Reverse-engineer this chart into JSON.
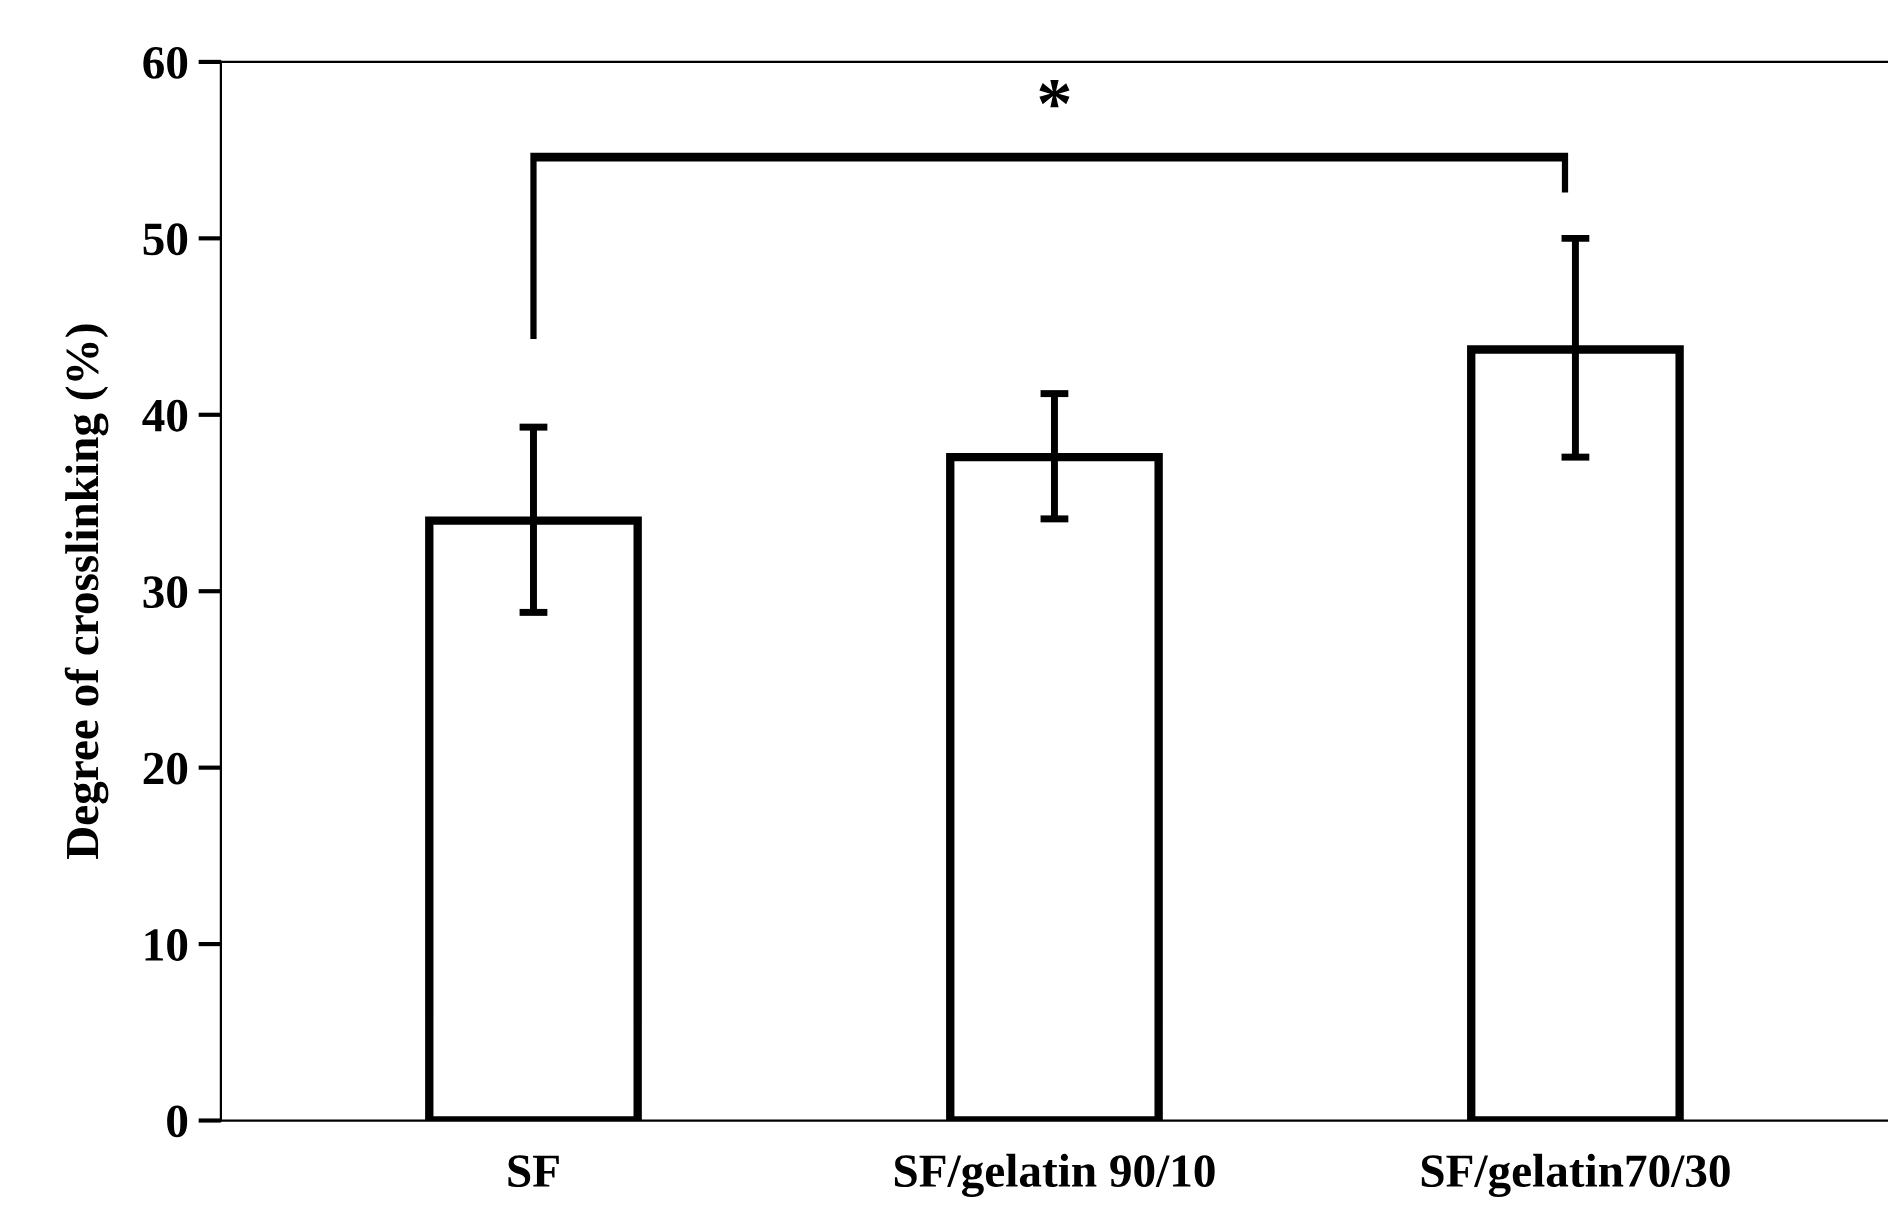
{
  "chart_data": {
    "type": "bar",
    "ylabel": "Degree of crosslinking (%)",
    "categories": [
      "SF",
      "SF/gelatin 90/10",
      "SF/gelatin70/30"
    ],
    "series": [
      {
        "color": "#ffffff",
        "values": [
          34.0,
          37.6,
          43.7
        ],
        "errors": [
          [
            28.8,
            39.3
          ],
          [
            34.1,
            41.2
          ],
          [
            37.6,
            50.0
          ]
        ]
      }
    ],
    "ylim": [
      0,
      60
    ],
    "yticks": [
      0,
      10,
      20,
      30,
      40,
      50,
      60
    ],
    "grid": false,
    "legend": false,
    "annotations": [
      "*"
    ]
  }
}
